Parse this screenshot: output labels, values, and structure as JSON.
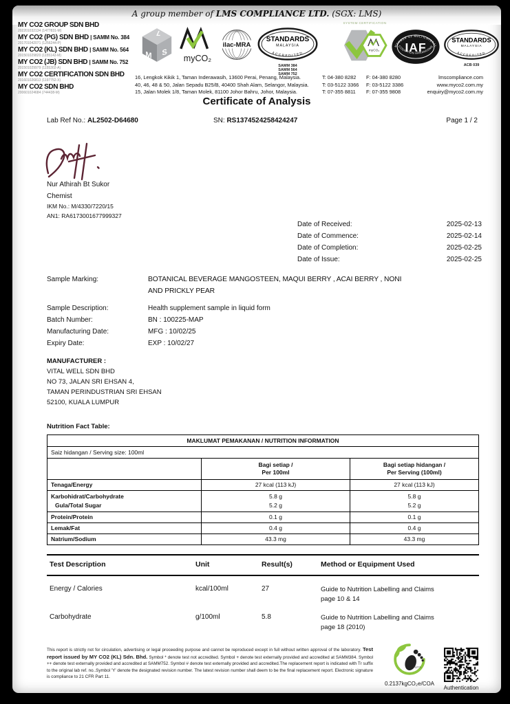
{
  "header": {
    "group_prefix": "A group member of",
    "group_bold": "LMS COMPLIANCE LTD.",
    "group_suffix": "(SGX: LMS)"
  },
  "companies": [
    {
      "name": "MY CO2 GROUP SDN BHD",
      "samm": "",
      "reg": "202201032134 (1477831-M)"
    },
    {
      "name": "MY CO2 (PG) SDN BHD",
      "samm": "| SAMM No. 384",
      "reg": "201701042071 (1256244-P)"
    },
    {
      "name": "MY CO2 (KL) SDN BHD",
      "samm": "| SAMM No. 564",
      "reg": "201501029820 (1155142-M)"
    },
    {
      "name": "MY CO2 (JB) SDN BHD",
      "samm": "| SAMM No. 752",
      "reg": "201501029979 (1155302-A)"
    },
    {
      "name": "MY CO2 CERTIFICATION SDN BHD",
      "samm": "",
      "reg": "201601026813 (1197752-X)"
    },
    {
      "name": "MY CO2 SDN BHD",
      "samm": "",
      "reg": "200601024684 (744438-M)"
    }
  ],
  "logos": {
    "myco2_text": "myCO₂",
    "ilac_text": "ilac-MRA",
    "standards_samm": {
      "line1": "STANDARDS",
      "line2": "MALAYSIA",
      "arc": "ACCREDITED",
      "below": [
        "SAMM 384",
        "SAMM 564",
        "SAMM 752"
      ]
    },
    "system_certification": "SYSTEM CERTIFICATION",
    "iaf": {
      "center": "IAF",
      "top": "MEMBER OF MULTILATERAL",
      "bottom": "RECOGNITION ARRANGEMENT"
    },
    "standards_acb": {
      "line1": "STANDARDS",
      "line2": "MALAYSIA",
      "arc": "ACCREDITED",
      "below": "ACB 039"
    }
  },
  "contact": {
    "addresses": [
      "16, Lengkok Kikik 1, Taman Inderawasih, 13600 Perai, Penang, Malaysia.",
      "40, 46, 48 & 50, Jalan Sepadu B25/B, 40400 Shah Alam, Selangor, Malaysia.",
      "15, Jalan Molek 1/8, Taman Molek, 81100 Johor Bahru, Johor, Malaysia."
    ],
    "phones": [
      {
        "t": "T: 04-380 8282",
        "f": "F: 04-380 8280"
      },
      {
        "t": "T: 03-5122 3366",
        "f": "F: 03-5122 3386"
      },
      {
        "t": "T: 07-355 8811",
        "f": "F: 07-355 9808"
      }
    ],
    "web": [
      "lmscompliance.com",
      "www.myco2.com.my",
      "enquiry@myco2.com.my"
    ]
  },
  "title": "Certificate of Analysis",
  "ref": {
    "lab_label": "Lab Ref No.:",
    "lab_value": "AL2502-D64680",
    "sn_label": "SN:",
    "sn_value": "RS1374524258424247",
    "page": "Page 1 / 2"
  },
  "signatory": {
    "name": "Nur Athirah Bt Sukor",
    "role": "Chemist",
    "ikm": "IKM No.: M/4330/7220/15",
    "an1": "AN1: RA6173001677999327"
  },
  "dates": [
    {
      "label": "Date of Received:",
      "value": "2025-02-13"
    },
    {
      "label": "Date of Commence:",
      "value": "2025-02-14"
    },
    {
      "label": "Date of Completion:",
      "value": "2025-02-25"
    },
    {
      "label": "Date of Issue:",
      "value": "2025-02-25"
    }
  ],
  "sample": {
    "marking_label": "Sample Marking:",
    "marking_lines": [
      "BOTANICAL BEVERAGE MANGOSTEEN, MAQUI BERRY , ACAI BERRY , NONI",
      "AND PRICKLY PEAR"
    ],
    "rows": [
      {
        "label": "Sample Description:",
        "value": "Health supplement sample in liquid form"
      },
      {
        "label": "Batch Number:",
        "value": "BN : 100225-MAP"
      },
      {
        "label": "Manufacturing Date:",
        "value": "MFG : 10/02/25"
      },
      {
        "label": "Expiry Date:",
        "value": "EXP : 10/02/27"
      }
    ]
  },
  "manufacturer": {
    "label": "MANUFACTURER :",
    "lines": [
      "VITAL WELL SDN BHD",
      "NO 73, JALAN SRI EHSAN 4,",
      "TAMAN PERINDUSTRIAN SRI EHSAN",
      "52100, KUALA LUMPUR"
    ]
  },
  "nutrition": {
    "section_label": "Nutrition Fact Table:",
    "header": "MAKLUMAT PEMAKANAN / NUTRITION INFORMATION",
    "serving": "Saiz hidangan / Serving size: 100ml",
    "columns": [
      [
        "Bagi setiap /",
        "Per 100ml"
      ],
      [
        "Bagi setiap hidangan /",
        "Per Serving (100ml)"
      ]
    ],
    "rows": [
      {
        "name": [
          "Tenaga/Energy"
        ],
        "per100": [
          "27 kcal (113 kJ)"
        ],
        "serving": [
          "27 kcal (113 kJ)"
        ]
      },
      {
        "name": [
          "Karbohidrat/Carbohydrate",
          "Gula/Total Sugar"
        ],
        "per100": [
          "5.8 g",
          "5.2 g"
        ],
        "serving": [
          "5.8 g",
          "5.2 g"
        ]
      },
      {
        "name": [
          "Protein/Protein"
        ],
        "per100": [
          "0.1 g"
        ],
        "serving": [
          "0.1 g"
        ]
      },
      {
        "name": [
          "Lemak/Fat"
        ],
        "per100": [
          "0.4 g"
        ],
        "serving": [
          "0.4 g"
        ]
      },
      {
        "name": [
          "Natrium/Sodium"
        ],
        "per100": [
          "43.3 mg"
        ],
        "serving": [
          "43.3 mg"
        ]
      }
    ]
  },
  "tests": {
    "headers": [
      "Test Description",
      "Unit",
      "Result(s)",
      "Method or Equipment Used"
    ],
    "rows": [
      {
        "desc": "Energy / Calories",
        "unit": "kcal/100ml",
        "result": "27",
        "method": [
          "Guide to Nutrition Labelling and Claims",
          "page 10 & 14"
        ]
      },
      {
        "desc": "Carbohydrate",
        "unit": "g/100ml",
        "result": "5.8",
        "method": [
          "Guide to Nutrition Labelling and Claims",
          "page 18 (2010)"
        ]
      }
    ]
  },
  "footer": {
    "disclaimer_pre": "This report is strictly not for circulation, advertising or legal proceeding purpose and cannot be reproduced except in full without written approval of the laboratory.",
    "disclaimer_bold": "Test report issued by MY CO2 (KL) Sdn. Bhd.",
    "disclaimer_post": "Symbol * denote test not accredited. Symbol + denote test externally provided and accredited at SAMM384. Symbol ++ denote test externally provided and accredited at SAMM752. Symbol # denote test externally provided and accredited.The replacement report is indicated with Tr suffix to the original lab ref. no..Symbol 'Y' denote the designated revision number. The latest revision number shall deem to be the final replacement report. Electronic signature is compliance to 21 CFR Part 11.",
    "footprint_value": "0.2137kgCO₂e/COA",
    "qr_label": "Authentication"
  },
  "colors": {
    "accent_green": "#8dc63f",
    "logo_gray": "#a7a9ac",
    "signature_ink": "#5c2433"
  }
}
